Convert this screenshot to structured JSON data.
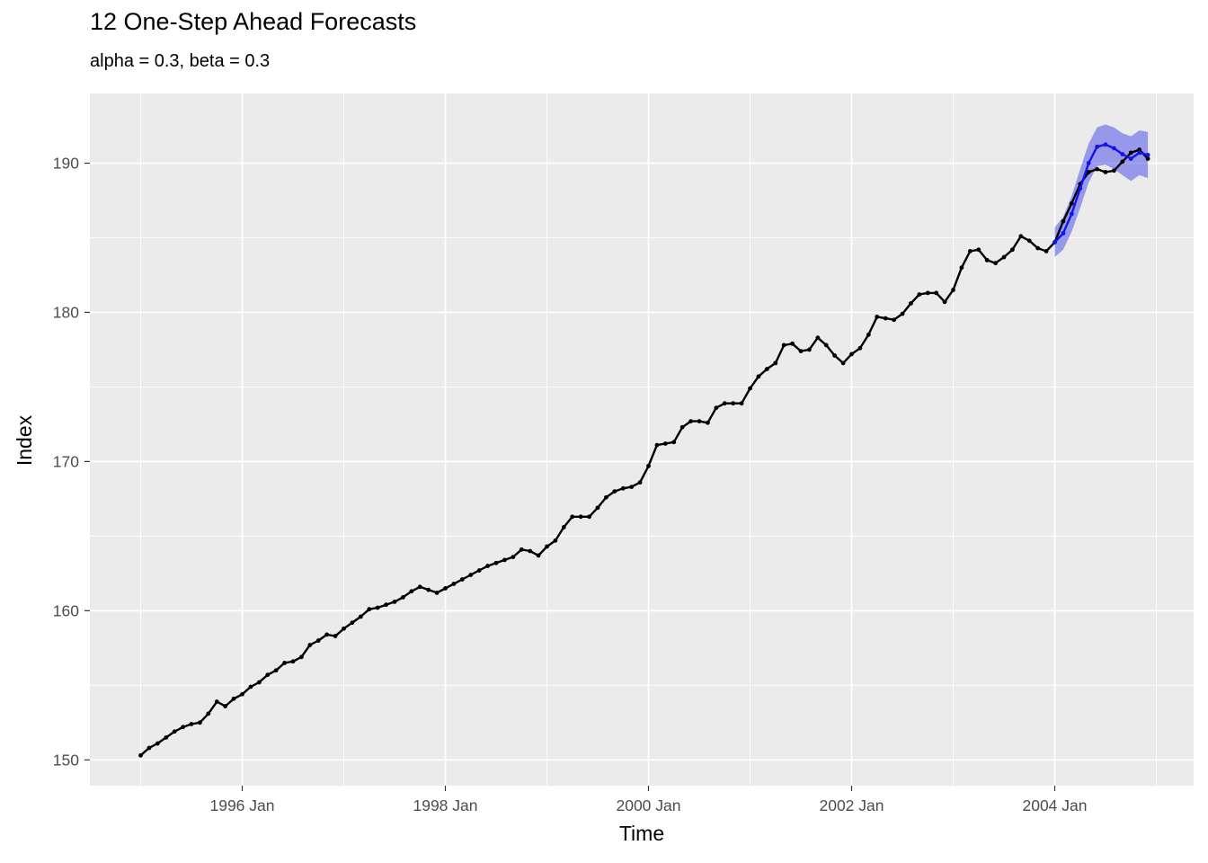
{
  "chart": {
    "title": "12 One-Step Ahead Forecasts",
    "subtitle": "alpha = 0.3, beta = 0.3",
    "xlabel": "Time",
    "ylabel": "Index"
  },
  "chart_data": {
    "type": "line",
    "title": "12 One-Step Ahead Forecasts",
    "subtitle": "alpha = 0.3, beta = 0.3",
    "xlabel": "Time",
    "ylabel": "Index",
    "x_start": "1995 Jan",
    "x_end": "2004 Dec",
    "x_tick_labels": [
      "1996 Jan",
      "1998 Jan",
      "2000 Jan",
      "2002 Jan",
      "2004 Jan"
    ],
    "x_tick_months": [
      12,
      36,
      60,
      84,
      108
    ],
    "x_minor_months": [
      0,
      24,
      48,
      72,
      96,
      120
    ],
    "y_ticks": [
      150,
      160,
      170,
      180,
      190
    ],
    "y_minor_ticks": [
      155,
      165,
      175,
      185
    ],
    "ylim": [
      148.3,
      194.7
    ],
    "grid": true,
    "legend_position": "none",
    "panel_bg": "#EBEBEB",
    "grid_color": "#FFFFFF",
    "tick_color": "#333333",
    "tick_label_color": "#4D4D4D",
    "series": [
      {
        "name": "observed",
        "color": "#000000",
        "start_month": 0,
        "values": [
          150.3,
          150.8,
          151.1,
          151.5,
          151.9,
          152.2,
          152.4,
          152.5,
          153.1,
          153.9,
          153.6,
          154.1,
          154.4,
          154.9,
          155.2,
          155.7,
          156.0,
          156.5,
          156.6,
          156.9,
          157.7,
          158.0,
          158.4,
          158.3,
          158.8,
          159.2,
          159.6,
          160.1,
          160.2,
          160.4,
          160.6,
          160.9,
          161.3,
          161.6,
          161.4,
          161.2,
          161.5,
          161.8,
          162.1,
          162.4,
          162.7,
          163.0,
          163.2,
          163.4,
          163.6,
          164.1,
          164.0,
          163.7,
          164.3,
          164.7,
          165.6,
          166.3,
          166.3,
          166.3,
          166.9,
          167.6,
          168.0,
          168.2,
          168.3,
          168.6,
          169.7,
          171.1,
          171.2,
          171.3,
          172.3,
          172.7,
          172.7,
          172.6,
          173.6,
          173.9,
          173.9,
          173.9,
          174.9,
          175.7,
          176.2,
          176.6,
          177.8,
          177.9,
          177.4,
          177.5,
          178.3,
          177.8,
          177.1,
          176.6,
          177.2,
          177.6,
          178.5,
          179.7,
          179.6,
          179.5,
          179.9,
          180.6,
          181.2,
          181.3,
          181.3,
          180.7,
          181.5,
          183.0,
          184.1,
          184.2,
          183.5,
          183.3,
          183.7,
          184.2,
          185.1,
          184.8,
          184.3,
          184.1,
          184.7,
          186.1,
          187.3,
          188.6,
          189.4,
          189.6,
          189.4,
          189.5,
          190.1,
          190.7,
          190.9,
          190.3
        ]
      },
      {
        "name": "forecast",
        "color": "#1414E6",
        "start_month": 108,
        "values": [
          184.7,
          185.3,
          186.6,
          188.3,
          190.0,
          191.1,
          191.25,
          191.0,
          190.6,
          190.3,
          190.7,
          190.55
        ]
      }
    ],
    "ribbon": {
      "name": "forecast-interval",
      "fill": "rgba(50,50,235,0.45)",
      "start_month": 108,
      "lower": [
        183.7,
        184.2,
        185.4,
        187.0,
        188.7,
        189.8,
        189.9,
        189.6,
        189.2,
        188.8,
        189.2,
        189.0
      ],
      "upper": [
        185.7,
        186.4,
        187.8,
        189.6,
        191.3,
        192.4,
        192.6,
        192.4,
        192.0,
        191.8,
        192.2,
        192.1
      ]
    }
  }
}
